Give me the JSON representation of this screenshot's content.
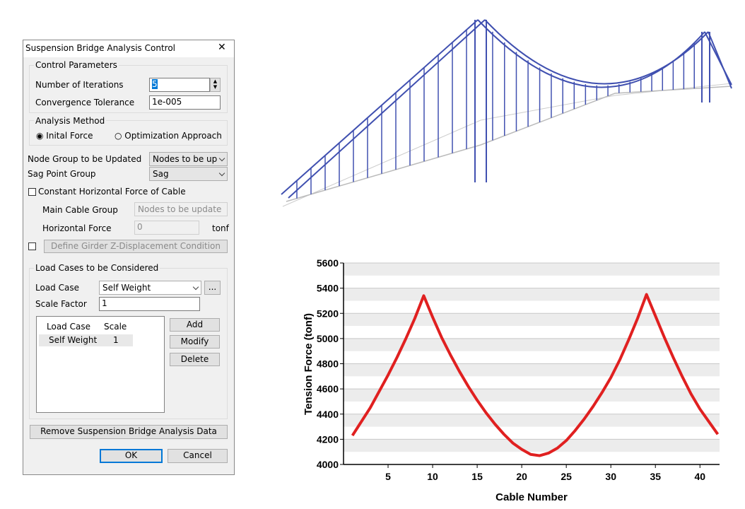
{
  "dialog": {
    "title": "Suspension Bridge Analysis Control",
    "close": "✕",
    "control_parameters": {
      "legend": "Control Parameters",
      "iterations_label": "Number of Iterations",
      "iterations_value": "5",
      "tolerance_label": "Convergence Tolerance",
      "tolerance_value": "1e-005"
    },
    "analysis_method": {
      "legend": "Analysis Method",
      "options": [
        "Inital Force",
        "Optimization Approach"
      ]
    },
    "node_group_label": "Node Group to be Updated",
    "node_group_value": "Nodes to be up",
    "sag_label": "Sag Point Group",
    "sag_value": "Sag",
    "constant_force_label": "Constant Horizontal Force of Cable",
    "main_cable_label": "Main Cable Group",
    "main_cable_value": "Nodes to be update",
    "horizontal_force_label": "Horizontal Force",
    "horizontal_force_value": "0",
    "horizontal_force_unit": "tonf",
    "girder_button": "Define Girder Z-Displacement Condition",
    "load_cases": {
      "legend": "Load Cases to be Considered",
      "load_case_label": "Load Case",
      "load_case_value": "Self Weight",
      "more": "...",
      "scale_label": "Scale Factor",
      "scale_value": "1",
      "table_headers": [
        "Load Case",
        "Scale"
      ],
      "table_rows": [
        [
          "Self Weight",
          "1"
        ]
      ],
      "buttons": [
        "Add",
        "Modify",
        "Delete"
      ]
    },
    "remove_button": "Remove Suspension Bridge Analysis Data",
    "ok": "OK",
    "cancel": "Cancel"
  },
  "chart_data": {
    "type": "line",
    "x_label": "Cable Number",
    "y_label": "Tension Force (tonf)",
    "x": [
      1,
      2,
      3,
      4,
      5,
      6,
      7,
      8,
      9,
      10,
      11,
      12,
      13,
      14,
      15,
      16,
      17,
      18,
      19,
      20,
      21,
      22,
      23,
      24,
      25,
      26,
      27,
      28,
      29,
      30,
      31,
      32,
      33,
      34,
      35,
      36,
      37,
      38,
      39,
      40,
      41,
      42
    ],
    "series": [
      {
        "color": "#e02020",
        "values": [
          4230,
          4340,
          4450,
          4580,
          4710,
          4850,
          5000,
          5160,
          5340,
          5170,
          5010,
          4870,
          4740,
          4620,
          4510,
          4410,
          4320,
          4240,
          4170,
          4120,
          4080,
          4070,
          4090,
          4130,
          4190,
          4270,
          4360,
          4460,
          4570,
          4690,
          4830,
          4990,
          5160,
          5350,
          5180,
          5010,
          4850,
          4700,
          4560,
          4440,
          4340,
          4240
        ]
      }
    ],
    "xlim": [
      0,
      42.2
    ],
    "xticks": [
      5,
      10,
      15,
      20,
      25,
      30,
      35,
      40
    ],
    "ylim": [
      4000,
      5600
    ],
    "yticks": [
      4000,
      4200,
      4400,
      4600,
      4800,
      5000,
      5200,
      5400,
      5600
    ],
    "grid": true
  }
}
